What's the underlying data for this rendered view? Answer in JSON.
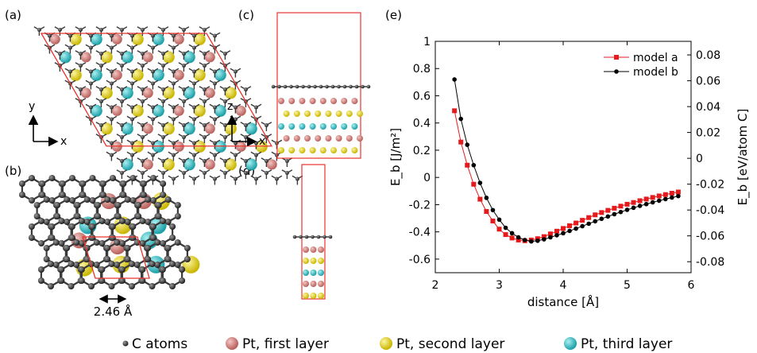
{
  "panels": {
    "a": "(a)",
    "b": "(b)",
    "c": "(c)",
    "d": "(d)",
    "e": "(e)"
  },
  "axes_labels": {
    "a_y": "y",
    "a_x": "x",
    "c_z": "z",
    "c_x": "x"
  },
  "scale_label": "2.46 Å",
  "legend_bottom": {
    "c": "C atoms",
    "pt1": "Pt, first layer",
    "pt2": "Pt, second layer",
    "pt3": "Pt, third layer"
  },
  "colors": {
    "carbon": "#333333",
    "pt_first": "#d98a86",
    "pt_second": "#f0e23a",
    "pt_third": "#3ec9cf",
    "cell": "#e8342e",
    "model_a": "#e41a1c",
    "model_b": "#000000"
  },
  "chart_data": {
    "type": "line",
    "xlabel": "distance [Å]",
    "ylabel_left": "E_b [J/m²]",
    "ylabel_right": "E_b [eV/atom C]",
    "xlim": [
      2,
      6
    ],
    "ylim": [
      -0.7,
      1.0
    ],
    "xticks": [
      "2",
      "3",
      "4",
      "5",
      "6"
    ],
    "yticks": [
      "1",
      "0.8",
      "0.6",
      "0.4",
      "0.2",
      "0",
      "-0.2",
      "-0.4",
      "-0.6"
    ],
    "ytick_values": [
      1,
      0.8,
      0.6,
      0.4,
      0.2,
      0,
      -0.2,
      -0.4,
      -0.6
    ],
    "yticks_right": [
      "0.08",
      "0.06",
      "0.04",
      "0.02",
      "0",
      "-0.02",
      "-0.04",
      "-0.06",
      "-0.08"
    ],
    "ytick_right_values": [
      0.08,
      0.06,
      0.04,
      0.02,
      0,
      -0.02,
      -0.04,
      -0.06,
      -0.08
    ],
    "right_ylim": [
      -0.0885,
      0.0905
    ],
    "legend_position": "top-right",
    "grid": false,
    "series": [
      {
        "name": "model a",
        "marker": "square",
        "x": [
          2.3,
          2.4,
          2.5,
          2.6,
          2.7,
          2.8,
          2.9,
          3.0,
          3.1,
          3.2,
          3.3,
          3.4,
          3.5,
          3.6,
          3.7,
          3.8,
          3.9,
          4.0,
          4.1,
          4.2,
          4.3,
          4.4,
          4.5,
          4.6,
          4.7,
          4.8,
          4.9,
          5.0,
          5.1,
          5.2,
          5.3,
          5.4,
          5.5,
          5.6,
          5.7,
          5.8
        ],
        "values": [
          0.49,
          0.26,
          0.09,
          -0.05,
          -0.16,
          -0.25,
          -0.32,
          -0.38,
          -0.42,
          -0.445,
          -0.46,
          -0.465,
          -0.46,
          -0.45,
          -0.435,
          -0.415,
          -0.395,
          -0.375,
          -0.355,
          -0.335,
          -0.315,
          -0.295,
          -0.275,
          -0.258,
          -0.242,
          -0.226,
          -0.211,
          -0.197,
          -0.184,
          -0.171,
          -0.159,
          -0.147,
          -0.136,
          -0.126,
          -0.116,
          -0.107
        ]
      },
      {
        "name": "model b",
        "marker": "circle",
        "x": [
          2.3,
          2.4,
          2.5,
          2.6,
          2.7,
          2.8,
          2.9,
          3.0,
          3.1,
          3.2,
          3.3,
          3.4,
          3.5,
          3.6,
          3.7,
          3.8,
          3.9,
          4.0,
          4.1,
          4.2,
          4.3,
          4.4,
          4.5,
          4.6,
          4.7,
          4.8,
          4.9,
          5.0,
          5.1,
          5.2,
          5.3,
          5.4,
          5.5,
          5.6,
          5.7,
          5.8
        ],
        "values": [
          0.72,
          0.43,
          0.24,
          0.09,
          -0.04,
          -0.15,
          -0.24,
          -0.31,
          -0.37,
          -0.41,
          -0.44,
          -0.46,
          -0.47,
          -0.465,
          -0.455,
          -0.44,
          -0.425,
          -0.41,
          -0.393,
          -0.376,
          -0.358,
          -0.34,
          -0.322,
          -0.304,
          -0.287,
          -0.27,
          -0.254,
          -0.238,
          -0.223,
          -0.209,
          -0.196,
          -0.183,
          -0.171,
          -0.159,
          -0.148,
          -0.137
        ]
      }
    ]
  }
}
